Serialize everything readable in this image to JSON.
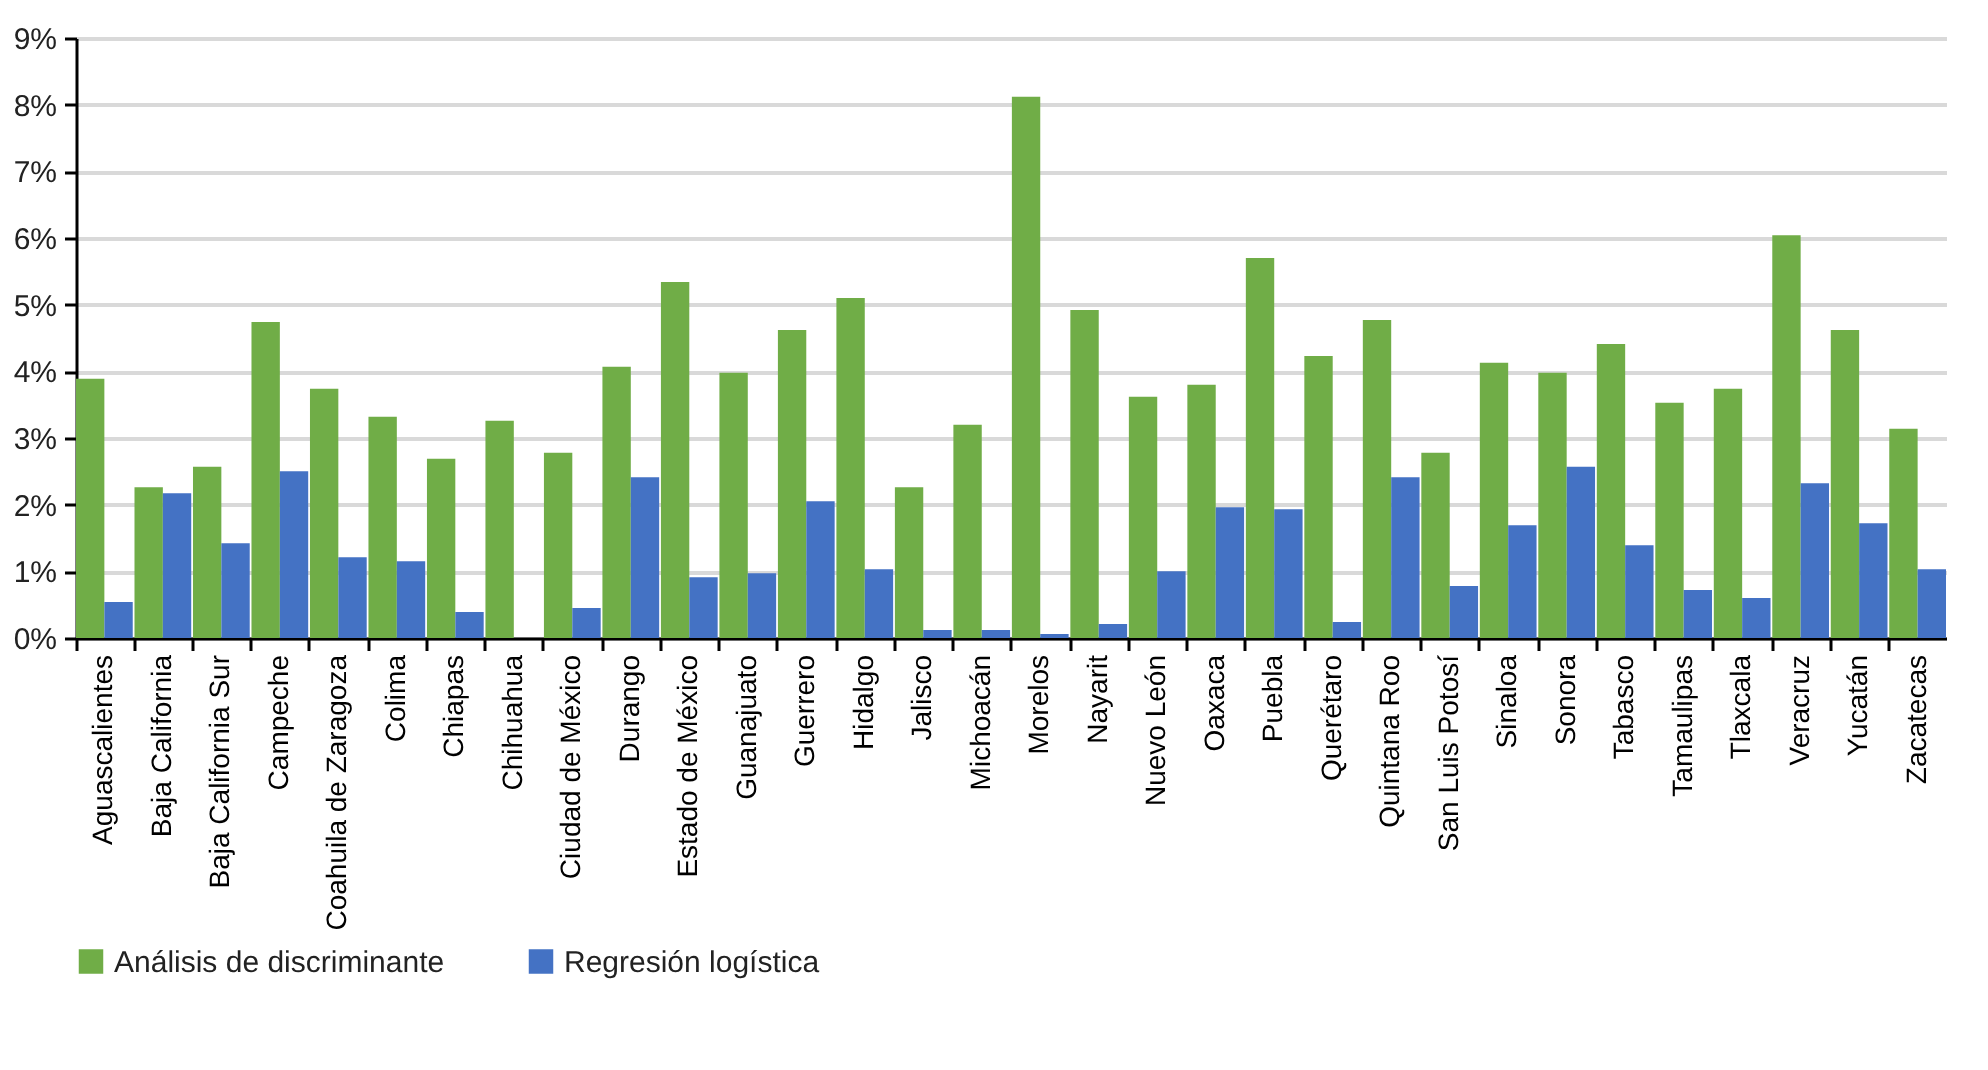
{
  "chart_data": {
    "type": "bar",
    "categories": [
      "Aguascalientes",
      "Baja California",
      "Baja California Sur",
      "Campeche",
      "Coahuila de Zaragoza",
      "Colima",
      "Chiapas",
      "Chihuahua",
      "Ciudad de México",
      "Durango",
      "Estado de México",
      "Guanajuato",
      "Guerrero",
      "Hidalgo",
      "Jalisco",
      "Michoacán",
      "Morelos",
      "Nayarit",
      "Nuevo León",
      "Oaxaca",
      "Puebla",
      "Querétaro",
      "Quintana Roo",
      "San Luis Potosí",
      "Sinaloa",
      "Sonora",
      "Tabasco",
      "Tamaulipas",
      "Tlaxcala",
      "Veracruz",
      "Yucatán",
      "Zacatecas"
    ],
    "series": [
      {
        "name": "Análisis de discriminante",
        "color": "#70ad47",
        "values": [
          3.89,
          2.26,
          2.57,
          4.74,
          3.74,
          3.32,
          2.69,
          3.26,
          2.78,
          4.07,
          5.34,
          3.98,
          4.62,
          5.1,
          2.26,
          3.2,
          8.12,
          4.92,
          3.62,
          3.8,
          5.7,
          4.23,
          4.77,
          2.78,
          4.13,
          3.98,
          4.41,
          3.53,
          3.74,
          6.04,
          4.62,
          3.14
        ]
      },
      {
        "name": "Regresión logística",
        "color": "#4472c4",
        "values": [
          0.54,
          2.17,
          1.42,
          2.5,
          1.21,
          1.15,
          0.39,
          0,
          0.45,
          2.41,
          0.91,
          0.97,
          2.05,
          1.03,
          0.12,
          0.12,
          0.06,
          0.21,
          1.0,
          1.96,
          1.93,
          0.24,
          2.41,
          0.78,
          1.69,
          2.57,
          1.39,
          0.72,
          0.6,
          2.32,
          1.72,
          1.03
        ]
      }
    ],
    "ylim": [
      0,
      9
    ],
    "yticks": [
      {
        "value": 0,
        "label": "0%"
      },
      {
        "value": 1,
        "label": "1%"
      },
      {
        "value": 2,
        "label": "2%"
      },
      {
        "value": 3,
        "label": "3%"
      },
      {
        "value": 4,
        "label": "4%"
      },
      {
        "value": 5,
        "label": "5%"
      },
      {
        "value": 6,
        "label": "6%"
      },
      {
        "value": 7,
        "label": "7%"
      },
      {
        "value": 8,
        "label": "8%"
      },
      {
        "value": 9,
        "label": "9%"
      }
    ],
    "grid": "y",
    "legend": "bottom"
  }
}
